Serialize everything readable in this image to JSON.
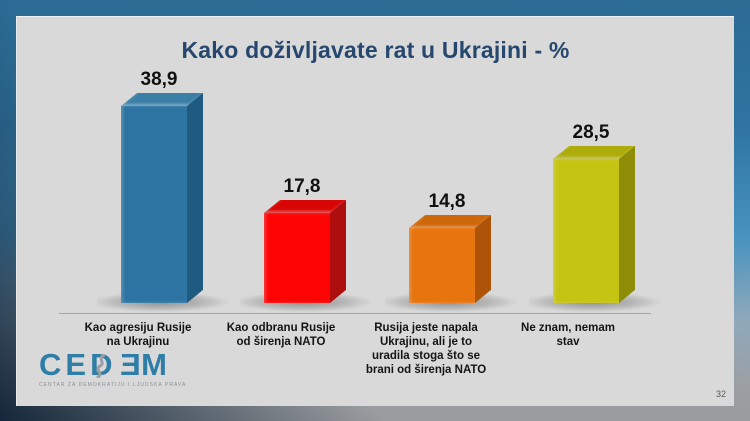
{
  "slide": {
    "title": "Kako doživljavate rat u Ukrajini - %",
    "page_number": "32"
  },
  "logo": {
    "part1": "CED",
    "part2": "E",
    "part3": "M",
    "tagline": "CENTAR ZA DEMOKRATIJU I LJUDSKA PRAVA",
    "brand_color": "#2E7EA7"
  },
  "frame": {
    "accent_blue": "#2E6E96",
    "slide_background": "#D9D9D9",
    "title_color": "#26476E"
  },
  "chart_data": {
    "type": "bar",
    "style": "3d-column",
    "title": "Kako doživljavate rat u Ukrajini - %",
    "unit": "%",
    "categories": [
      {
        "label": "Kao agresiju Rusije na Ukrajinu",
        "lines": [
          "Kao agresiju Rusije",
          "na Ukrajinu"
        ]
      },
      {
        "label": "Kao odbranu Rusije od širenja NATO",
        "lines": [
          "Kao odbranu Rusije",
          "od širenja NATO"
        ]
      },
      {
        "label": "Rusija jeste napala Ukrajinu, ali je to uradila stoga što se brani od širenja NATO",
        "lines": [
          "Rusija jeste napala",
          "Ukrajinu, ali je to",
          "uradila stoga što se",
          "brani od širenja NATO"
        ]
      },
      {
        "label": "Ne znam, nemam stav",
        "lines": [
          "Ne znam, nemam",
          "stav"
        ]
      }
    ],
    "values": [
      38.9,
      17.8,
      14.8,
      28.5
    ],
    "value_labels": [
      "38,9",
      "17,8",
      "14,8",
      "28,5"
    ],
    "bar_colors": [
      {
        "face": "#2E74A3",
        "side": "#1F5A80",
        "top": "#3B7FA6"
      },
      {
        "face": "#FC0404",
        "side": "#AE0E0E",
        "top": "#D90505"
      },
      {
        "face": "#E8740E",
        "side": "#AE5408",
        "top": "#CE660A"
      },
      {
        "face": "#C5C413",
        "side": "#8E8D05",
        "top": "#ADAC0A"
      }
    ],
    "ylim": [
      0,
      45
    ],
    "gridlines": false,
    "legend": false
  }
}
